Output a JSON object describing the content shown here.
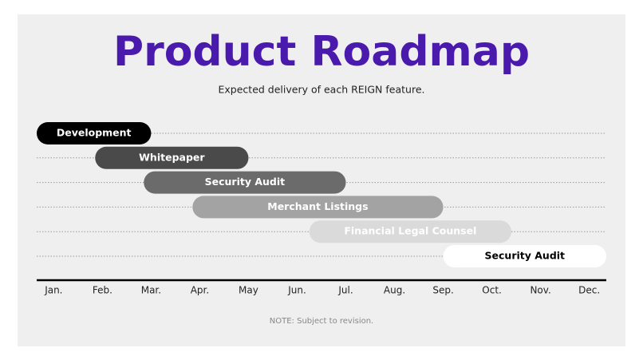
{
  "chart_data": {
    "type": "gantt",
    "title": "Product Roadmap",
    "subtitle": "Expected delivery of each REIGN feature.",
    "note": "NOTE: Subject to revision.",
    "xlim": [
      -0.35,
      11.35
    ],
    "xticks": [
      {
        "value": 0,
        "label": "Jan."
      },
      {
        "value": 1,
        "label": "Feb."
      },
      {
        "value": 2,
        "label": "Mar."
      },
      {
        "value": 3,
        "label": "Apr."
      },
      {
        "value": 4,
        "label": "May"
      },
      {
        "value": 5,
        "label": "Jun."
      },
      {
        "value": 6,
        "label": "Jul."
      },
      {
        "value": 7,
        "label": "Aug."
      },
      {
        "value": 8,
        "label": "Sep."
      },
      {
        "value": 9,
        "label": "Oct."
      },
      {
        "value": 10,
        "label": "Nov."
      },
      {
        "value": 11,
        "label": "Dec."
      }
    ],
    "tasks": [
      {
        "name": "Development",
        "start": -0.35,
        "end": 2,
        "color": "#000000",
        "text_color": "#ffffff"
      },
      {
        "name": "Whitepaper",
        "start": 0.85,
        "end": 4,
        "color": "#4a4a4a",
        "text_color": "#ffffff"
      },
      {
        "name": "Security Audit",
        "start": 1.85,
        "end": 6,
        "color": "#6b6b6b",
        "text_color": "#ffffff"
      },
      {
        "name": "Merchant Listings",
        "start": 2.85,
        "end": 8,
        "color": "#a3a3a3",
        "text_color": "#ffffff"
      },
      {
        "name": "Financial Legal Counsel",
        "start": 5.25,
        "end": 9.4,
        "color": "#dadada",
        "text_color": "#ffffff"
      },
      {
        "name": "Security Audit",
        "start": 8,
        "end": 11.35,
        "color": "#ffffff",
        "text_color": "#000000"
      }
    ]
  }
}
